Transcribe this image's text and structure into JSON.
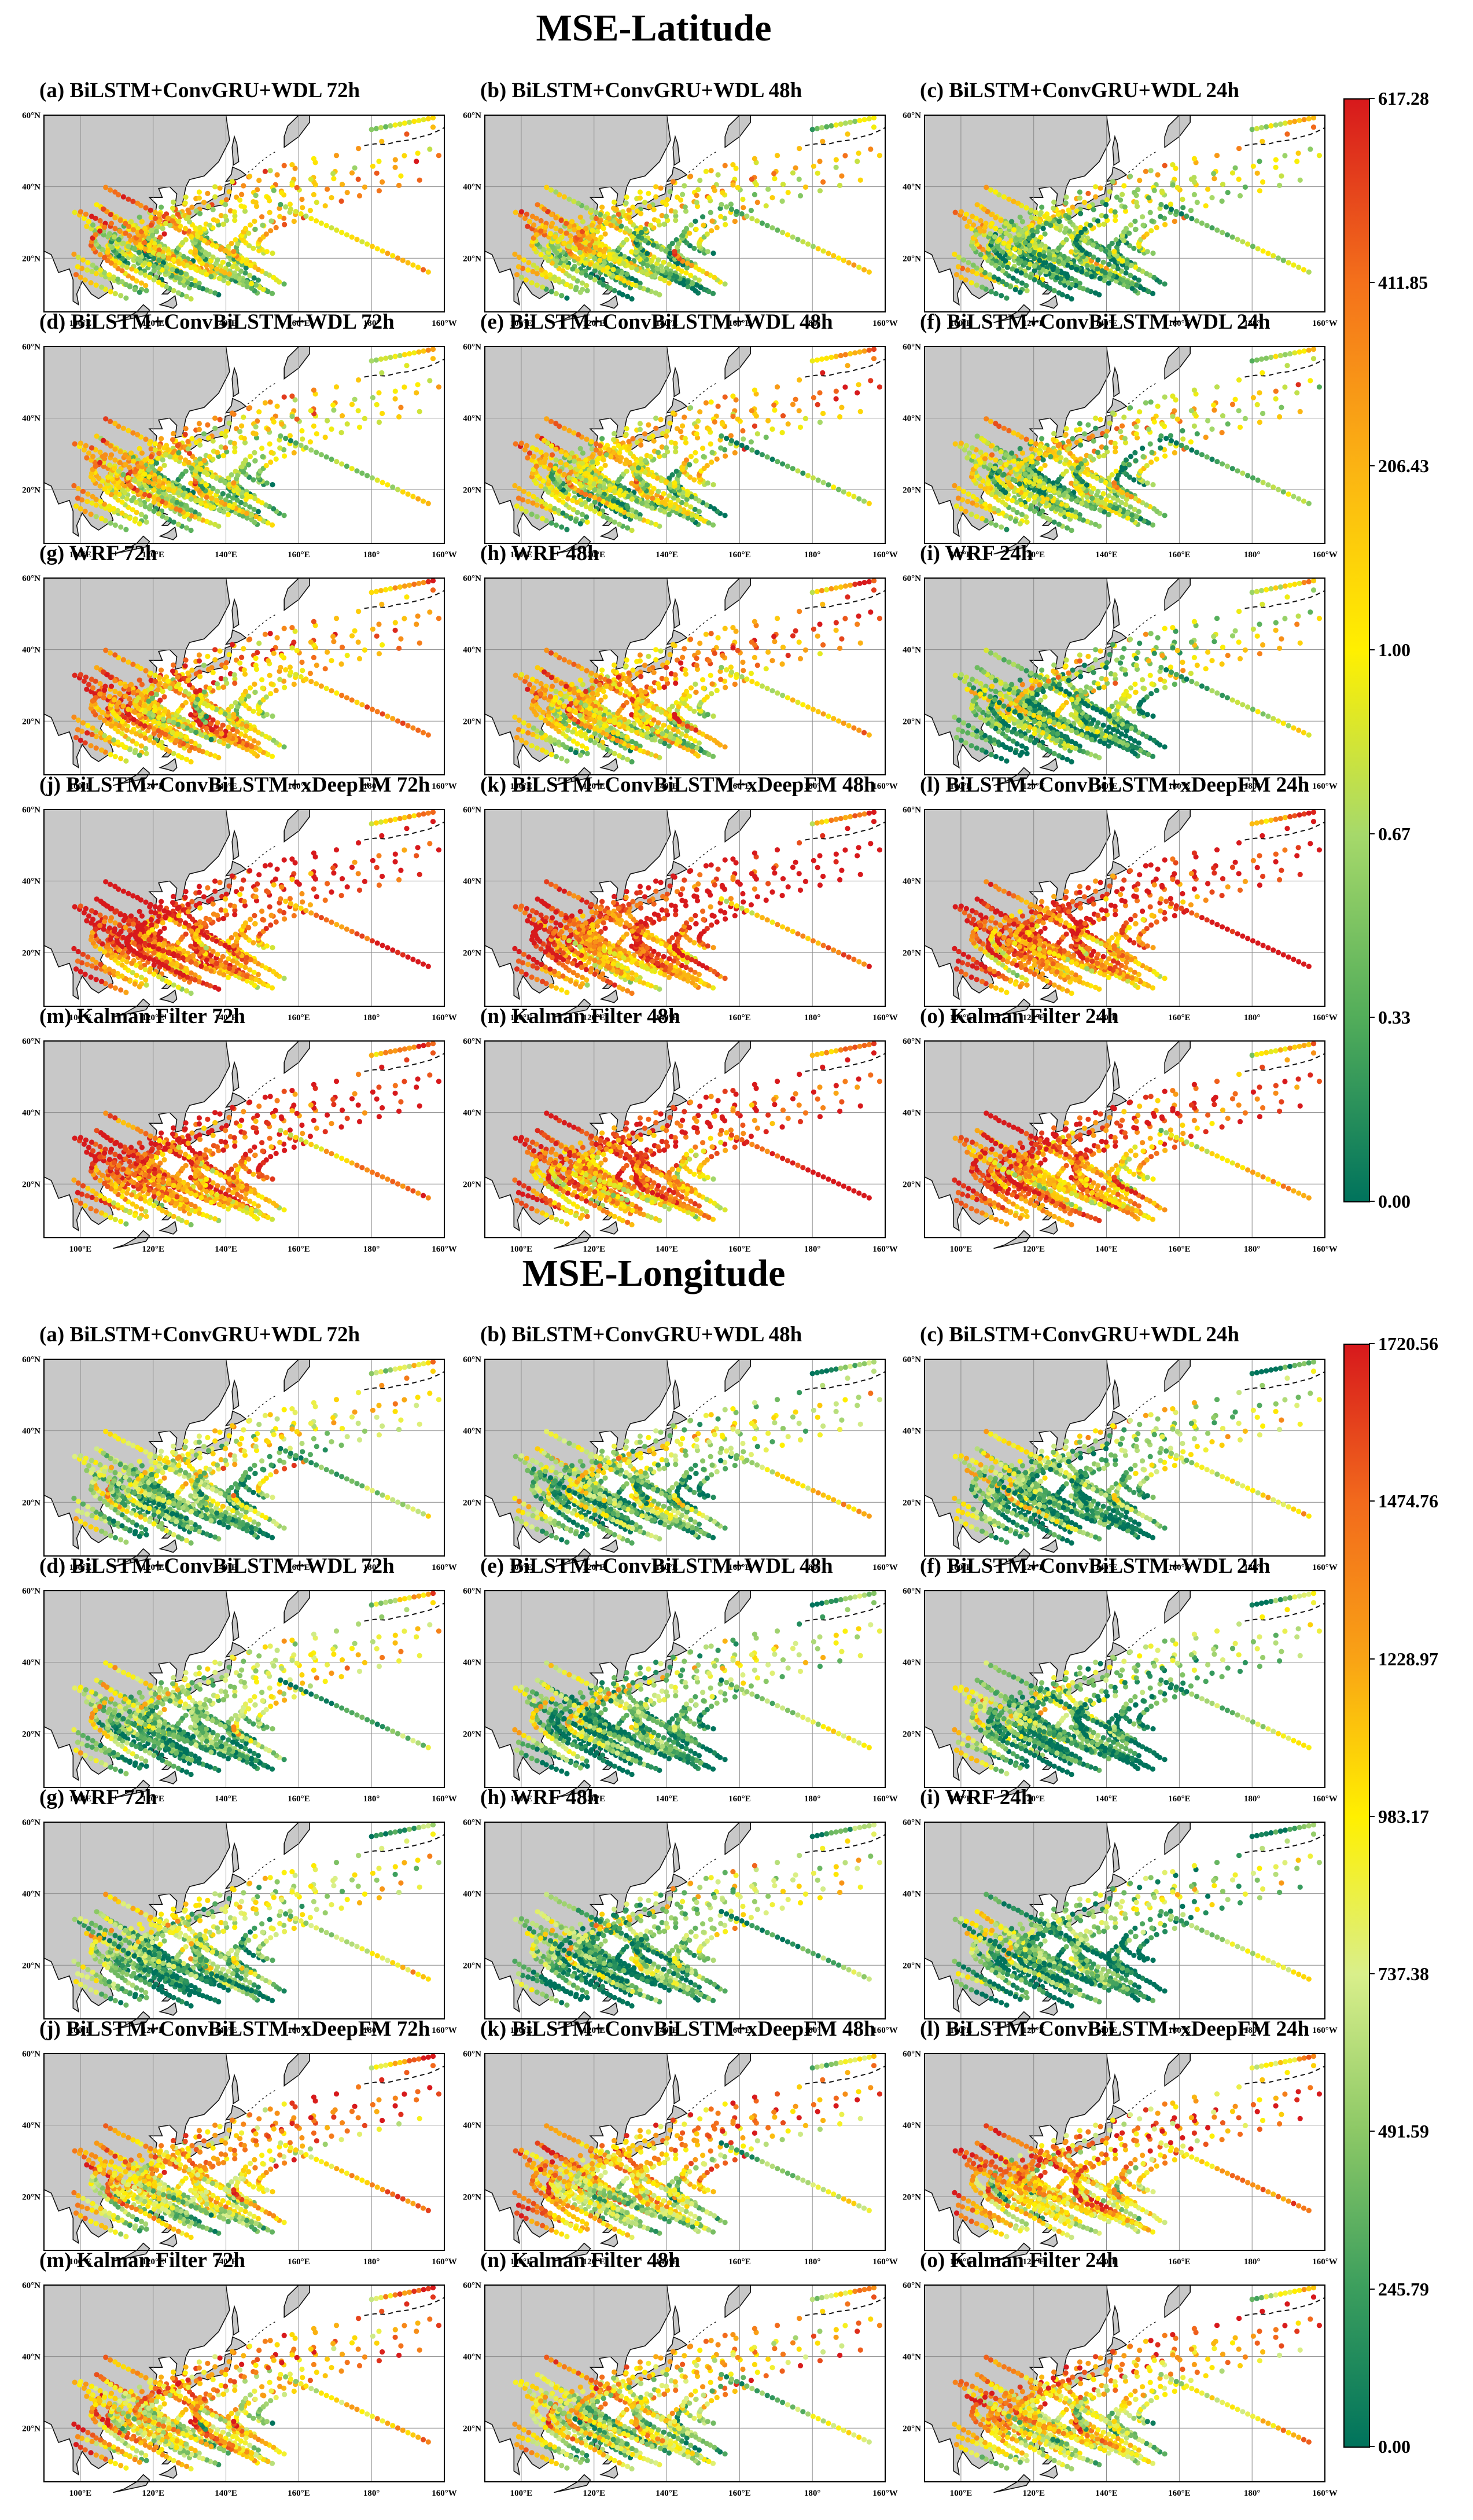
{
  "chart_data": [
    {
      "type": "scatter",
      "title": "MSE-Latitude",
      "colorbar": {
        "min": 0.0,
        "max": 617.28,
        "ticks": [
          "617.28",
          "411.85",
          "206.43",
          "1.00",
          "0.67",
          "0.33",
          "0.00"
        ],
        "colors": [
          "#d7191c",
          "#f4711b",
          "#fbb313",
          "#fff000",
          "#a6d96a",
          "#52ad5a",
          "#00735c"
        ]
      },
      "axes": {
        "x_ticks": [
          "100°E",
          "120°E",
          "140°E",
          "160°E",
          "180°",
          "160°W"
        ],
        "y_ticks": [
          "60°N",
          "40°N",
          "20°N"
        ],
        "lon_range": [
          90,
          200
        ],
        "lat_range": [
          5,
          60
        ]
      },
      "panels": [
        {
          "label": "(a) BiLSTM+ConvGRU+WDL 72h",
          "mean_level": 0.45,
          "seed": 11
        },
        {
          "label": "(b) BiLSTM+ConvGRU+WDL 48h",
          "mean_level": 0.4,
          "seed": 12
        },
        {
          "label": "(c) BiLSTM+ConvGRU+WDL 24h",
          "mean_level": 0.3,
          "seed": 13
        },
        {
          "label": "(d) BiLSTM+ConvBiLSTM+WDL 72h",
          "mean_level": 0.45,
          "seed": 14
        },
        {
          "label": "(e) BiLSTM+ConvBiLSTM+WDL 48h",
          "mean_level": 0.4,
          "seed": 15
        },
        {
          "label": "(f) BiLSTM+ConvBiLSTM+WDL 24h",
          "mean_level": 0.3,
          "seed": 16
        },
        {
          "label": "(g) WRF 72h",
          "mean_level": 0.6,
          "seed": 17
        },
        {
          "label": "(h) WRF 48h",
          "mean_level": 0.5,
          "seed": 18
        },
        {
          "label": "(i) WRF 24h",
          "mean_level": 0.22,
          "seed": 19
        },
        {
          "label": "(j) BiLSTM+ConvBiLSTM+xDeepFM 72h",
          "mean_level": 0.8,
          "seed": 20
        },
        {
          "label": "(k) BiLSTM+ConvBiLSTM+xDeepFM 48h",
          "mean_level": 0.78,
          "seed": 21
        },
        {
          "label": "(l) BiLSTM+ConvBiLSTM+xDeepFM 24h",
          "mean_level": 0.75,
          "seed": 22
        },
        {
          "label": "(m) Kalman Filter 72h",
          "mean_level": 0.78,
          "seed": 23
        },
        {
          "label": "(n) Kalman Filter 48h",
          "mean_level": 0.72,
          "seed": 24
        },
        {
          "label": "(o) Kalman Filter 24h",
          "mean_level": 0.72,
          "seed": 25
        }
      ]
    },
    {
      "type": "scatter",
      "title": "MSE-Longitude",
      "colorbar": {
        "min": 0.0,
        "max": 1720.56,
        "ticks": [
          "1720.56",
          "1474.76",
          "1228.97",
          "983.17",
          "737.38",
          "491.59",
          "245.79",
          "0.00"
        ],
        "colors": [
          "#d7191c",
          "#f26a1c",
          "#f9a315",
          "#fff000",
          "#d9ef8b",
          "#8cc866",
          "#3b9e5d",
          "#00735c"
        ]
      },
      "axes": {
        "x_ticks": [
          "100°E",
          "120°E",
          "140°E",
          "160°E",
          "180°",
          "160°W"
        ],
        "y_ticks": [
          "60°N",
          "40°N",
          "20°N"
        ],
        "lon_range": [
          90,
          200
        ],
        "lat_range": [
          5,
          60
        ]
      },
      "panels": [
        {
          "label": "(a) BiLSTM+ConvGRU+WDL 72h",
          "mean_level": 0.3,
          "seed": 31
        },
        {
          "label": "(b) BiLSTM+ConvGRU+WDL 48h",
          "mean_level": 0.25,
          "seed": 32
        },
        {
          "label": "(c) BiLSTM+ConvGRU+WDL 24h",
          "mean_level": 0.22,
          "seed": 33
        },
        {
          "label": "(d) BiLSTM+ConvBiLSTM+WDL 72h",
          "mean_level": 0.3,
          "seed": 34
        },
        {
          "label": "(e) BiLSTM+ConvBiLSTM+WDL 48h",
          "mean_level": 0.22,
          "seed": 35
        },
        {
          "label": "(f) BiLSTM+ConvBiLSTM+WDL 24h",
          "mean_level": 0.2,
          "seed": 36
        },
        {
          "label": "(g) WRF 72h",
          "mean_level": 0.22,
          "seed": 37
        },
        {
          "label": "(h) WRF 48h",
          "mean_level": 0.18,
          "seed": 38
        },
        {
          "label": "(i) WRF 24h",
          "mean_level": 0.12,
          "seed": 39
        },
        {
          "label": "(j) BiLSTM+ConvBiLSTM+xDeepFM 72h",
          "mean_level": 0.5,
          "seed": 40
        },
        {
          "label": "(k) BiLSTM+ConvBiLSTM+xDeepFM 48h",
          "mean_level": 0.52,
          "seed": 41
        },
        {
          "label": "(l) BiLSTM+ConvBiLSTM+xDeepFM 24h",
          "mean_level": 0.58,
          "seed": 42
        },
        {
          "label": "(m) Kalman Filter 72h",
          "mean_level": 0.55,
          "seed": 43
        },
        {
          "label": "(n) Kalman Filter 48h",
          "mean_level": 0.45,
          "seed": 44
        },
        {
          "label": "(o) Kalman Filter 24h",
          "mean_level": 0.55,
          "seed": 45
        }
      ]
    }
  ]
}
